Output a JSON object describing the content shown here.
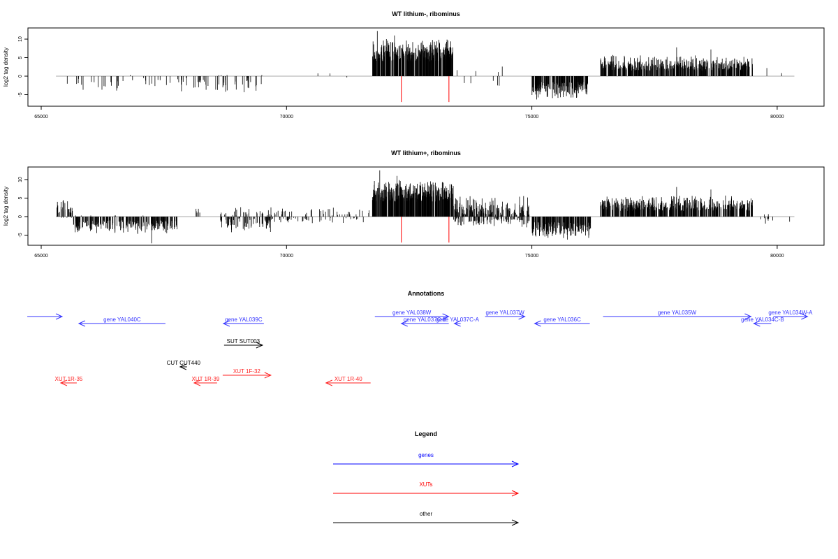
{
  "chart_data": [
    {
      "type": "bar",
      "title": "WT lithium-, ribominus",
      "ylabel": "log2 tag density",
      "xlim": [
        64400,
        80900
      ],
      "ylim": [
        -8,
        13
      ],
      "xticks": [
        65000,
        70000,
        75000,
        80000
      ],
      "yticks": [
        -5,
        0,
        5,
        10
      ],
      "segments": [
        {
          "start": 65350,
          "end": 69600,
          "per_kb": 14,
          "min": -4.5,
          "max": -0.5,
          "pos_prob": 0.08
        },
        {
          "start": 68500,
          "end": 69400,
          "per_kb": 25,
          "min": -5.5,
          "max": -1,
          "pos_prob": 0.12
        },
        {
          "start": 70550,
          "end": 71300,
          "per_kb": 4,
          "min": -2,
          "max": 1,
          "pos_prob": 0.4
        },
        {
          "start": 71750,
          "end": 73400,
          "per_kb": 220,
          "min": 4,
          "max": 10.5,
          "pos_prob": 1
        },
        {
          "start": 73450,
          "end": 74950,
          "per_kb": 6,
          "min": -3,
          "max": 3,
          "pos_prob": 0.5
        },
        {
          "start": 75000,
          "end": 76150,
          "per_kb": 160,
          "min": -6.5,
          "max": -1.5,
          "pos_prob": 0
        },
        {
          "start": 76400,
          "end": 79500,
          "per_kb": 150,
          "min": 1.5,
          "max": 6,
          "pos_prob": 1
        },
        {
          "start": 79780,
          "end": 79820,
          "per_kb": 30,
          "min": 2,
          "max": 2.5,
          "pos_prob": 1
        },
        {
          "start": 80080,
          "end": 80110,
          "per_kb": 30,
          "min": 0.5,
          "max": 1,
          "pos_prob": 1
        }
      ],
      "peaks": [
        [
          71850,
          12.2
        ],
        [
          72200,
          11
        ],
        [
          77950,
          7.8
        ],
        [
          78650,
          7.2
        ]
      ],
      "markers": [
        {
          "x": 72340,
          "y": -7
        },
        {
          "x": 73310,
          "y": -7
        }
      ],
      "marker_color": "#ff0000"
    },
    {
      "type": "bar",
      "title": "WT lithium+, ribominus",
      "ylabel": "log2 tag density",
      "xlim": [
        64400,
        80900
      ],
      "ylim": [
        -8,
        13
      ],
      "xticks": [
        65000,
        70000,
        75000,
        80000
      ],
      "yticks": [
        -5,
        0,
        5,
        10
      ],
      "segments": [
        {
          "start": 65300,
          "end": 65650,
          "per_kb": 90,
          "min": 1,
          "max": 5.3,
          "pos_prob": 0.85
        },
        {
          "start": 65650,
          "end": 67800,
          "per_kb": 110,
          "min": -5,
          "max": -1,
          "pos_prob": 0.02
        },
        {
          "start": 68150,
          "end": 68300,
          "per_kb": 40,
          "min": 1,
          "max": 2.5,
          "pos_prob": 1
        },
        {
          "start": 68650,
          "end": 69700,
          "per_kb": 100,
          "min": -5,
          "max": 3,
          "pos_prob": 0.3
        },
        {
          "start": 69700,
          "end": 71700,
          "per_kb": 40,
          "min": -2,
          "max": 3,
          "pos_prob": 0.55
        },
        {
          "start": 71750,
          "end": 73400,
          "per_kb": 220,
          "min": 4,
          "max": 10.5,
          "pos_prob": 1
        },
        {
          "start": 73400,
          "end": 74950,
          "per_kb": 160,
          "min": -3,
          "max": 6,
          "pos_prob": 0.65
        },
        {
          "start": 75000,
          "end": 76200,
          "per_kb": 160,
          "min": -6.5,
          "max": -1.5,
          "pos_prob": 0
        },
        {
          "start": 76400,
          "end": 79500,
          "per_kb": 150,
          "min": 1.5,
          "max": 6,
          "pos_prob": 1
        },
        {
          "start": 79650,
          "end": 80300,
          "per_kb": 15,
          "min": -2.5,
          "max": 1.5,
          "pos_prob": 0.4
        }
      ],
      "peaks": [
        [
          71900,
          12.5
        ],
        [
          72250,
          11
        ],
        [
          67250,
          -7.2
        ],
        [
          77950,
          8
        ],
        [
          78650,
          7.3
        ]
      ],
      "markers": [
        {
          "x": 72340,
          "y": -7
        },
        {
          "x": 73310,
          "y": -7
        }
      ],
      "marker_color": "#ff0000"
    }
  ],
  "annotations": {
    "title": "Annotations",
    "features": [
      {
        "label": "",
        "start": 64716,
        "end": 65427,
        "strand": "+",
        "kind": "gene",
        "track": 0
      },
      {
        "label": "gene YAL040C",
        "start": 65768,
        "end": 67532,
        "strand": "-",
        "kind": "gene",
        "track": 1
      },
      {
        "label": "gene YAL039C",
        "start": 68713,
        "end": 69538,
        "strand": "-",
        "kind": "gene",
        "track": 1
      },
      {
        "label": "gene YAL038W",
        "start": 71800,
        "end": 73307,
        "strand": "+",
        "kind": "gene",
        "track": 0
      },
      {
        "label": "gene YAL037C-B",
        "start": 72340,
        "end": 73307,
        "strand": "-",
        "kind": "gene",
        "track": 1
      },
      {
        "label": "gene YAL037C-A",
        "start": 73420,
        "end": 73550,
        "strand": "-",
        "kind": "gene",
        "track": 1
      },
      {
        "label": "gene YAL037W",
        "start": 74047,
        "end": 74858,
        "strand": "+",
        "kind": "gene",
        "track": 0
      },
      {
        "label": "gene YAL036C",
        "start": 75057,
        "end": 76181,
        "strand": "-",
        "kind": "gene",
        "track": 1
      },
      {
        "label": "gene YAL035W",
        "start": 76451,
        "end": 79467,
        "strand": "+",
        "kind": "gene",
        "track": 0
      },
      {
        "label": "gene YAL034C-B",
        "start": 79523,
        "end": 79879,
        "strand": "-",
        "kind": "gene",
        "track": 1
      },
      {
        "label": "gene YAL034W-A",
        "start": 79922,
        "end": 80619,
        "strand": "+",
        "kind": "gene",
        "track": 0
      },
      {
        "label": "SUT SUT003",
        "start": 68727,
        "end": 69510,
        "strand": "+",
        "kind": "other",
        "track": 2
      },
      {
        "label": "CUT CUT440",
        "start": 67830,
        "end": 67972,
        "strand": "-",
        "kind": "other",
        "track": 3
      },
      {
        "label": "XUT 1F-32",
        "start": 68699,
        "end": 69680,
        "strand": "+",
        "kind": "xut",
        "track": 4
      },
      {
        "label": "XUT 1R-35",
        "start": 65398,
        "end": 65725,
        "strand": "-",
        "kind": "xut",
        "track": 5
      },
      {
        "label": "XUT 1R-39",
        "start": 68116,
        "end": 68585,
        "strand": "-",
        "kind": "xut",
        "track": 5
      },
      {
        "label": "XUT 1R-40",
        "start": 70804,
        "end": 71714,
        "strand": "-",
        "kind": "xut",
        "track": 5
      }
    ]
  },
  "legend": {
    "title": "Legend",
    "items": [
      {
        "label": "genes",
        "color": "#0000ff"
      },
      {
        "label": "XUTs",
        "color": "#ff0000"
      },
      {
        "label": "other",
        "color": "#000000"
      }
    ]
  },
  "colors": {
    "gene": "#3333ff",
    "xut": "#ff2222",
    "other": "#000000",
    "bars": "#000000",
    "baseline": "#aaaaaa"
  }
}
